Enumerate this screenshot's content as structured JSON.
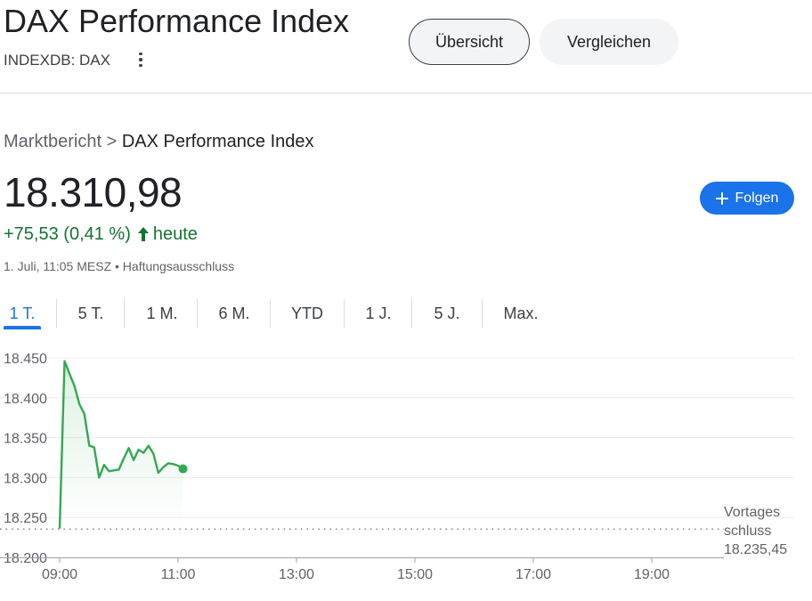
{
  "header": {
    "title": "DAX Performance Index",
    "ticker": "INDEXDB: DAX",
    "more_icon": "more-vert-icon",
    "tabs": [
      {
        "label": "Übersicht",
        "active": true
      },
      {
        "label": "Vergleichen",
        "active": false
      }
    ]
  },
  "breadcrumb": {
    "parent": "Marktbericht",
    "separator": ">",
    "current": "DAX Performance Index"
  },
  "quote": {
    "price": "18.310,98",
    "change": "+75,53 (0,41 %)",
    "change_suffix": "heute",
    "timestamp": "1. Juli, 11:05 MESZ • Haftungsausschluss",
    "change_color": "#137333"
  },
  "follow_button": {
    "label": "Folgen",
    "icon": "plus-icon",
    "color": "#1a73e8"
  },
  "range_tabs": [
    {
      "label": "1 T.",
      "active": true
    },
    {
      "label": "5 T.",
      "active": false
    },
    {
      "label": "1 M.",
      "active": false
    },
    {
      "label": "6 M.",
      "active": false
    },
    {
      "label": "YTD",
      "active": false
    },
    {
      "label": "1 J.",
      "active": false
    },
    {
      "label": "5 J.",
      "active": false
    },
    {
      "label": "Max.",
      "active": false
    }
  ],
  "chart_data": {
    "type": "line",
    "x_ticks": [
      "09:00",
      "11:00",
      "13:00",
      "15:00",
      "17:00",
      "19:00"
    ],
    "y_ticks": [
      "18.450",
      "18.400",
      "18.350",
      "18.300",
      "18.250",
      "18.200"
    ],
    "xlim": [
      "09:00",
      "20:10"
    ],
    "ylim": [
      18200,
      18450
    ],
    "grid": true,
    "line_color": "#34a853",
    "series": [
      {
        "x": [
          "09:00",
          "09:05",
          "09:10",
          "09:15",
          "09:20",
          "09:25",
          "09:30",
          "09:35",
          "09:40",
          "09:45",
          "09:50",
          "10:00",
          "10:05",
          "10:10",
          "10:15",
          "10:20",
          "10:25",
          "10:30",
          "10:35",
          "10:40",
          "10:45",
          "10:50",
          "10:55",
          "11:00",
          "11:05"
        ],
        "values": [
          18236,
          18446,
          18430,
          18415,
          18392,
          18380,
          18340,
          18338,
          18300,
          18316,
          18308,
          18310,
          18324,
          18337,
          18322,
          18335,
          18331,
          18340,
          18330,
          18306,
          18313,
          18318,
          18317,
          18315,
          18311
        ]
      }
    ],
    "previous_close": {
      "label": "Vortagesschluss",
      "value": "18.235,45"
    }
  }
}
